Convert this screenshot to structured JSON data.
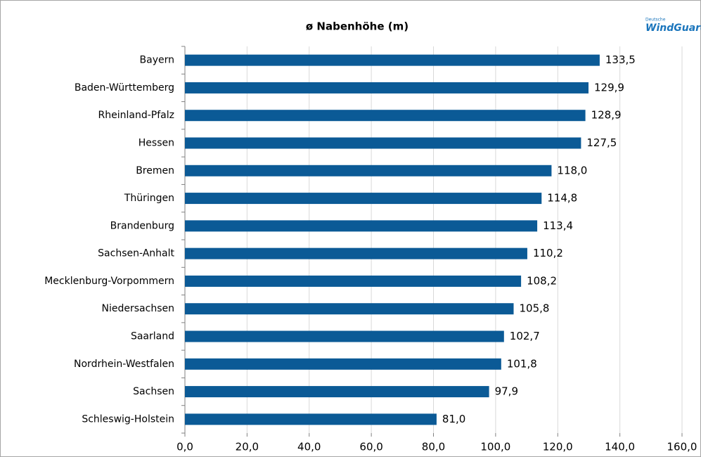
{
  "chart_data": {
    "type": "barh",
    "title": "ø Nabenhöhe (m)",
    "categories": [
      "Bayern",
      "Baden-Württemberg",
      "Rheinland-Pfalz",
      "Hessen",
      "Bremen",
      "Thüringen",
      "Brandenburg",
      "Sachsen-Anhalt",
      "Mecklenburg-Vorpommern",
      "Niedersachsen",
      "Saarland",
      "Nordrhein-Westfalen",
      "Sachsen",
      "Schleswig-Holstein"
    ],
    "values": [
      133.5,
      129.9,
      128.9,
      127.5,
      118.0,
      114.8,
      113.4,
      110.2,
      108.2,
      105.8,
      102.7,
      101.8,
      97.9,
      81.0
    ],
    "value_labels": [
      "133,5",
      "129,9",
      "128,9",
      "127,5",
      "118,0",
      "114,8",
      "113,4",
      "110,2",
      "108,2",
      "105,8",
      "102,7",
      "101,8",
      "97,9",
      "81,0"
    ],
    "color": "#0b5a96",
    "xlim": [
      0,
      160
    ],
    "xticks": [
      {
        "value": 0,
        "label": "0,0"
      },
      {
        "value": 20,
        "label": "20,0"
      },
      {
        "value": 40,
        "label": "40,0"
      },
      {
        "value": 60,
        "label": "60,0"
      },
      {
        "value": 80,
        "label": "80,0"
      },
      {
        "value": 100,
        "label": "100,0"
      },
      {
        "value": 120,
        "label": "120,0"
      },
      {
        "value": 140,
        "label": "140,0"
      },
      {
        "value": 160,
        "label": "160,0"
      }
    ],
    "grid": true
  },
  "logo": {
    "top": "Deutsche",
    "main": "WindGuard"
  }
}
